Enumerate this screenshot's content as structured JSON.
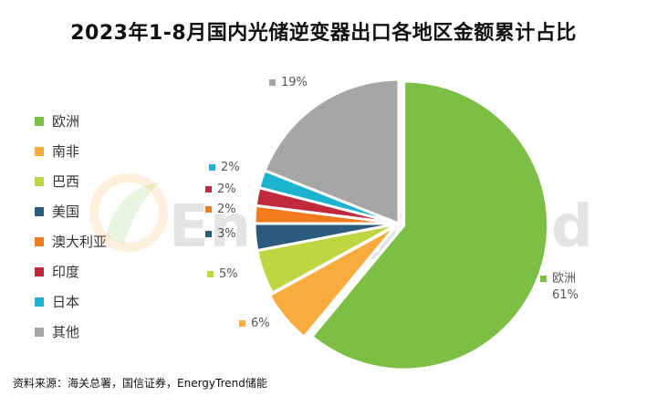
{
  "chart_data": {
    "type": "pie",
    "title": "2023年1-8月国内光储逆变器出口各地区金额累计占比",
    "slices": [
      {
        "name": "欧洲",
        "value": 61,
        "label": "61%",
        "color": "#7DBE45"
      },
      {
        "name": "南非",
        "value": 6,
        "label": "6%",
        "color": "#F9AC3D"
      },
      {
        "name": "巴西",
        "value": 5,
        "label": "5%",
        "color": "#BFD642"
      },
      {
        "name": "美国",
        "value": 3,
        "label": "3%",
        "color": "#2B5B7E"
      },
      {
        "name": "澳大利亚",
        "value": 2,
        "label": "2%",
        "color": "#F37B1D"
      },
      {
        "name": "印度",
        "value": 2,
        "label": "2%",
        "color": "#C12A3C"
      },
      {
        "name": "日本",
        "value": 2,
        "label": "2%",
        "color": "#1BB3CF"
      },
      {
        "name": "其他",
        "value": 19,
        "label": "19%",
        "color": "#A6A6A6"
      }
    ],
    "legend_position": "left"
  },
  "watermark": "EnergyTrend",
  "source": "资料来源：海关总署，国信证券，EnergyTrend储能"
}
